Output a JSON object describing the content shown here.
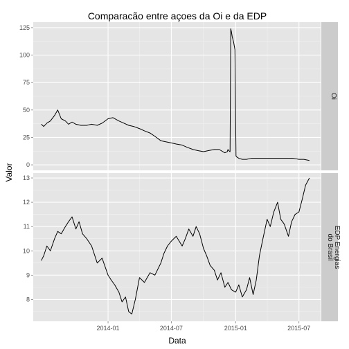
{
  "chart_data": {
    "type": "line",
    "title": "Comparacão entre açoes da Oi e da EDP",
    "xlabel": "Data",
    "ylabel": "Valor",
    "x_ticks": [
      "2014-01",
      "2014-07",
      "2015-01",
      "2015-07"
    ],
    "xlim": [
      "2013-06-01",
      "2015-09-01"
    ],
    "grid": true,
    "legend": "none",
    "colors": {
      "panel_bg": "#e5e5e5",
      "grid_major": "#ffffff",
      "grid_minor": "#f2f2f2",
      "strip_bg": "#cccccc",
      "line": "#000000"
    },
    "panels": [
      {
        "name": "Oi",
        "strip_label": "Oi",
        "ylim": [
          -5,
          130
        ],
        "y_ticks": [
          0,
          25,
          50,
          75,
          100,
          125
        ],
        "series": {
          "x": [
            "2013-06-24",
            "2013-07-01",
            "2013-07-10",
            "2013-07-20",
            "2013-08-01",
            "2013-08-10",
            "2013-08-20",
            "2013-09-01",
            "2013-09-10",
            "2013-09-20",
            "2013-10-01",
            "2013-10-15",
            "2013-11-01",
            "2013-11-15",
            "2013-12-01",
            "2013-12-15",
            "2014-01-01",
            "2014-01-15",
            "2014-02-01",
            "2014-02-15",
            "2014-03-01",
            "2014-03-15",
            "2014-04-01",
            "2014-04-15",
            "2014-05-01",
            "2014-05-15",
            "2014-06-01",
            "2014-06-15",
            "2014-07-01",
            "2014-07-15",
            "2014-08-01",
            "2014-08-15",
            "2014-09-01",
            "2014-09-15",
            "2014-10-01",
            "2014-10-15",
            "2014-11-01",
            "2014-11-15",
            "2014-12-01",
            "2014-12-08",
            "2014-12-10",
            "2014-12-12",
            "2014-12-16",
            "2014-12-18",
            "2014-12-20",
            "2014-12-22",
            "2014-12-26",
            "2014-12-30",
            "2015-01-02",
            "2015-01-05",
            "2015-01-10",
            "2015-01-20",
            "2015-02-01",
            "2015-02-15",
            "2015-03-01",
            "2015-03-15",
            "2015-04-01",
            "2015-04-15",
            "2015-05-01",
            "2015-05-15",
            "2015-06-01",
            "2015-06-15",
            "2015-07-01",
            "2015-07-15",
            "2015-07-31"
          ],
          "y": [
            37,
            35,
            38,
            40,
            45,
            50,
            42,
            40,
            37,
            39,
            37,
            36,
            36,
            37,
            36,
            38,
            42,
            43,
            40,
            38,
            36,
            35,
            33,
            31,
            29,
            26,
            22,
            21,
            20,
            19,
            18,
            16,
            14,
            13,
            12,
            13,
            14,
            14,
            11,
            12,
            14,
            13,
            12,
            124,
            121,
            117,
            112,
            105,
            8,
            7,
            6,
            5,
            5,
            6,
            6,
            6,
            6,
            6,
            6,
            6,
            6,
            6,
            5,
            5,
            4
          ]
        }
      },
      {
        "name": "EDP Energias do Brasil",
        "strip_label": [
          "EDP Energias",
          "do Brasil"
        ],
        "ylim": [
          7.1,
          13.2
        ],
        "y_ticks": [
          8,
          9,
          10,
          11,
          12,
          13
        ],
        "series": {
          "x": [
            "2013-06-24",
            "2013-07-01",
            "2013-07-10",
            "2013-07-20",
            "2013-08-01",
            "2013-08-10",
            "2013-08-20",
            "2013-09-01",
            "2013-09-10",
            "2013-09-20",
            "2013-10-01",
            "2013-10-10",
            "2013-10-20",
            "2013-11-01",
            "2013-11-15",
            "2013-12-01",
            "2013-12-15",
            "2014-01-01",
            "2014-01-10",
            "2014-01-20",
            "2014-02-01",
            "2014-02-10",
            "2014-02-20",
            "2014-03-01",
            "2014-03-10",
            "2014-03-20",
            "2014-04-01",
            "2014-04-15",
            "2014-05-01",
            "2014-05-15",
            "2014-06-01",
            "2014-06-10",
            "2014-06-20",
            "2014-07-01",
            "2014-07-15",
            "2014-08-01",
            "2014-08-10",
            "2014-08-20",
            "2014-09-01",
            "2014-09-10",
            "2014-09-20",
            "2014-10-01",
            "2014-10-10",
            "2014-10-20",
            "2014-11-01",
            "2014-11-10",
            "2014-11-20",
            "2014-12-01",
            "2014-12-10",
            "2014-12-20",
            "2015-01-01",
            "2015-01-10",
            "2015-01-20",
            "2015-02-01",
            "2015-02-10",
            "2015-02-20",
            "2015-03-01",
            "2015-03-10",
            "2015-03-20",
            "2015-04-01",
            "2015-04-10",
            "2015-04-20",
            "2015-05-01",
            "2015-05-10",
            "2015-05-20",
            "2015-06-01",
            "2015-06-10",
            "2015-06-20",
            "2015-07-01",
            "2015-07-10",
            "2015-07-20",
            "2015-07-31"
          ],
          "y": [
            9.6,
            9.8,
            10.2,
            10.0,
            10.5,
            10.8,
            10.7,
            11.0,
            11.2,
            11.4,
            10.9,
            11.2,
            10.7,
            10.5,
            10.2,
            9.5,
            9.7,
            9.0,
            8.8,
            8.6,
            8.3,
            7.9,
            8.1,
            7.5,
            7.4,
            8.0,
            8.9,
            8.7,
            9.1,
            9.0,
            9.5,
            9.9,
            10.2,
            10.4,
            10.6,
            10.2,
            10.5,
            10.9,
            10.6,
            11.0,
            10.7,
            10.1,
            9.8,
            9.4,
            9.2,
            8.8,
            9.1,
            8.5,
            8.7,
            8.4,
            8.3,
            8.6,
            8.1,
            8.4,
            8.9,
            8.2,
            8.8,
            9.8,
            10.5,
            11.3,
            11.0,
            11.6,
            12.0,
            11.3,
            11.1,
            10.6,
            11.2,
            11.5,
            11.6,
            12.1,
            12.7,
            13.0
          ]
        }
      }
    ]
  }
}
